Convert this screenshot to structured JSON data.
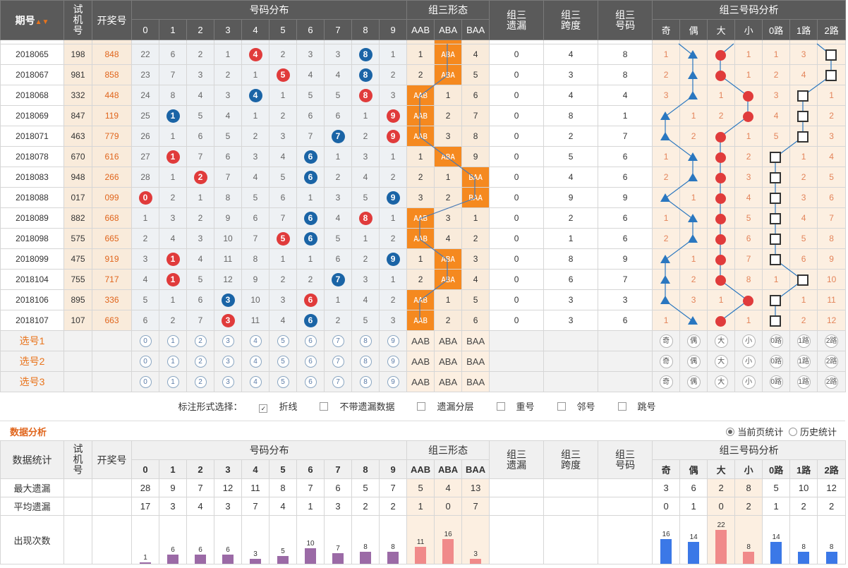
{
  "header": {
    "issue": "期号",
    "sjh": "试机号",
    "kjh": "开奖号",
    "dist": "号码分布",
    "form": "组三形态",
    "miss": "组三遗漏",
    "span": "组三跨度",
    "code": "组三号码",
    "analysis": "组三号码分析"
  },
  "digits": [
    "0",
    "1",
    "2",
    "3",
    "4",
    "5",
    "6",
    "7",
    "8",
    "9"
  ],
  "form_labels": [
    "AAB",
    "ABA",
    "BAA"
  ],
  "ana_labels": [
    "奇",
    "偶",
    "大",
    "小",
    "0路",
    "1路",
    "2路"
  ],
  "rows": [
    {
      "issue": "2018065",
      "sj": "198",
      "kj": "848",
      "d": [
        "22",
        "6",
        "2",
        "1",
        "4",
        "2",
        "3",
        "3",
        "8",
        "1"
      ],
      "hit": [
        4,
        8
      ],
      "hc": "blue",
      "hcs": [
        "red",
        "blue"
      ],
      "f": [
        "1",
        "ABA",
        "4"
      ],
      "fh": 1,
      "m": "0",
      "s": "4",
      "c": "8",
      "a": [
        "1",
        "",
        "",
        "1",
        "1",
        "3",
        ""
      ]
    },
    {
      "issue": "2018067",
      "sj": "981",
      "kj": "858",
      "d": [
        "23",
        "7",
        "3",
        "2",
        "1",
        "5",
        "4",
        "4",
        "8",
        "2"
      ],
      "hit": [
        5,
        8
      ],
      "hcs": [
        "red",
        "blue"
      ],
      "f": [
        "2",
        "ABA",
        "5"
      ],
      "fh": 1,
      "m": "0",
      "s": "3",
      "c": "8",
      "a": [
        "2",
        "",
        "",
        "1",
        "2",
        "4",
        ""
      ]
    },
    {
      "issue": "2018068",
      "sj": "332",
      "kj": "448",
      "d": [
        "24",
        "8",
        "4",
        "3",
        "4",
        "1",
        "5",
        "5",
        "8",
        "3"
      ],
      "hit": [
        4,
        8
      ],
      "hcs": [
        "blue",
        "red"
      ],
      "f": [
        "AAB",
        "1",
        "6"
      ],
      "fh": 0,
      "m": "0",
      "s": "4",
      "c": "4",
      "a": [
        "3",
        "",
        "1",
        "",
        "3",
        "",
        "1"
      ]
    },
    {
      "issue": "2018069",
      "sj": "847",
      "kj": "119",
      "d": [
        "25",
        "1",
        "5",
        "4",
        "1",
        "2",
        "6",
        "6",
        "1",
        "9"
      ],
      "hit": [
        1,
        9
      ],
      "hcs": [
        "blue",
        "red"
      ],
      "f": [
        "AAB",
        "2",
        "7"
      ],
      "fh": 0,
      "m": "0",
      "s": "8",
      "c": "1",
      "a": [
        "",
        "1",
        "2",
        "",
        "4",
        "",
        "2"
      ]
    },
    {
      "issue": "2018071",
      "sj": "463",
      "kj": "779",
      "d": [
        "26",
        "1",
        "6",
        "5",
        "2",
        "3",
        "7",
        "7",
        "2",
        "9"
      ],
      "hit": [
        7,
        9
      ],
      "hcs": [
        "blue",
        "red"
      ],
      "f": [
        "AAB",
        "3",
        "8"
      ],
      "fh": 0,
      "m": "0",
      "s": "2",
      "c": "7",
      "a": [
        "",
        "2",
        "",
        "1",
        "5",
        "",
        "3"
      ]
    },
    {
      "issue": "2018078",
      "sj": "670",
      "kj": "616",
      "d": [
        "27",
        "1",
        "7",
        "6",
        "3",
        "4",
        "6",
        "1",
        "3",
        "1"
      ],
      "hit": [
        1,
        6
      ],
      "hcs": [
        "red",
        "blue"
      ],
      "f": [
        "1",
        "ABA",
        "9"
      ],
      "fh": 1,
      "m": "0",
      "s": "5",
      "c": "6",
      "a": [
        "1",
        "",
        "",
        "2",
        "",
        "1",
        "4"
      ]
    },
    {
      "issue": "2018083",
      "sj": "948",
      "kj": "266",
      "d": [
        "28",
        "1",
        "2",
        "7",
        "4",
        "5",
        "6",
        "2",
        "4",
        "2"
      ],
      "hit": [
        2,
        6
      ],
      "hcs": [
        "red",
        "blue"
      ],
      "f": [
        "2",
        "1",
        "BAA"
      ],
      "fh": 2,
      "m": "0",
      "s": "4",
      "c": "6",
      "a": [
        "2",
        "",
        "",
        "3",
        "",
        "2",
        "5"
      ]
    },
    {
      "issue": "2018088",
      "sj": "017",
      "kj": "099",
      "d": [
        "0",
        "2",
        "1",
        "8",
        "5",
        "6",
        "1",
        "3",
        "5",
        "9"
      ],
      "hit": [
        0,
        9
      ],
      "hcs": [
        "red",
        "blue"
      ],
      "f": [
        "3",
        "2",
        "BAA"
      ],
      "fh": 2,
      "m": "0",
      "s": "9",
      "c": "9",
      "a": [
        "",
        "1",
        "",
        "4",
        "",
        "3",
        "6"
      ]
    },
    {
      "issue": "2018089",
      "sj": "882",
      "kj": "668",
      "d": [
        "1",
        "3",
        "2",
        "9",
        "6",
        "7",
        "6",
        "4",
        "8",
        "1"
      ],
      "hit": [
        6,
        8
      ],
      "hcs": [
        "blue",
        "red"
      ],
      "f": [
        "AAB",
        "3",
        "1"
      ],
      "fh": 0,
      "m": "0",
      "s": "2",
      "c": "6",
      "a": [
        "1",
        "",
        "",
        "5",
        "",
        "4",
        "7"
      ]
    },
    {
      "issue": "2018098",
      "sj": "575",
      "kj": "665",
      "d": [
        "2",
        "4",
        "3",
        "10",
        "7",
        "5",
        "6",
        "5",
        "1",
        "2"
      ],
      "hit": [
        5,
        6
      ],
      "hcs": [
        "red",
        "blue"
      ],
      "f": [
        "AAB",
        "4",
        "2"
      ],
      "fh": 0,
      "m": "0",
      "s": "1",
      "c": "6",
      "a": [
        "2",
        "",
        "",
        "6",
        "",
        "5",
        "8"
      ]
    },
    {
      "issue": "2018099",
      "sj": "475",
      "kj": "919",
      "d": [
        "3",
        "1",
        "4",
        "11",
        "8",
        "1",
        "1",
        "6",
        "2",
        "9"
      ],
      "hit": [
        1,
        9
      ],
      "hcs": [
        "red",
        "blue"
      ],
      "f": [
        "1",
        "ABA",
        "3"
      ],
      "fh": 1,
      "m": "0",
      "s": "8",
      "c": "9",
      "a": [
        "",
        "1",
        "",
        "7",
        "",
        "6",
        "9"
      ]
    },
    {
      "issue": "2018104",
      "sj": "755",
      "kj": "717",
      "d": [
        "4",
        "1",
        "5",
        "12",
        "9",
        "2",
        "2",
        "7",
        "3",
        "1"
      ],
      "hit": [
        1,
        7
      ],
      "hcs": [
        "red",
        "blue"
      ],
      "f": [
        "2",
        "ABA",
        "4"
      ],
      "fh": 1,
      "m": "0",
      "s": "6",
      "c": "7",
      "a": [
        "",
        "2",
        "",
        "8",
        "1",
        "",
        "10"
      ]
    },
    {
      "issue": "2018106",
      "sj": "895",
      "kj": "336",
      "d": [
        "5",
        "1",
        "6",
        "3",
        "10",
        "3",
        "6",
        "1",
        "4",
        "2"
      ],
      "hit": [
        3,
        6
      ],
      "hcs": [
        "blue",
        "red"
      ],
      "f": [
        "AAB",
        "1",
        "5"
      ],
      "fh": 0,
      "m": "0",
      "s": "3",
      "c": "3",
      "a": [
        "",
        "3",
        "1",
        "",
        "",
        "1",
        "11"
      ]
    },
    {
      "issue": "2018107",
      "sj": "107",
      "kj": "663",
      "d": [
        "6",
        "2",
        "7",
        "3",
        "11",
        "4",
        "6",
        "2",
        "5",
        "3"
      ],
      "hit": [
        3,
        6
      ],
      "hcs": [
        "red",
        "blue"
      ],
      "f": [
        "AAB",
        "2",
        "6"
      ],
      "fh": 0,
      "m": "0",
      "s": "3",
      "c": "6",
      "a": [
        "1",
        "",
        "",
        "1",
        "",
        "2",
        "12"
      ]
    }
  ],
  "trend": {
    "tri_col": [
      1,
      1,
      1,
      0,
      0,
      1,
      1,
      0,
      1,
      1,
      0,
      0,
      0,
      1
    ],
    "dot_col": [
      2,
      2,
      3,
      3,
      2,
      2,
      2,
      2,
      2,
      2,
      2,
      2,
      3,
      2
    ],
    "sq_col": [
      6,
      6,
      5,
      5,
      5,
      4,
      4,
      4,
      4,
      4,
      4,
      5,
      4,
      4
    ]
  },
  "select_rows": [
    "选号1",
    "选号2",
    "选号3"
  ],
  "options": {
    "label": "标注形式选择：",
    "items": [
      {
        "label": "折线",
        "checked": true
      },
      {
        "label": "不带遗漏数据",
        "checked": false
      },
      {
        "label": "遗漏分层",
        "checked": false
      },
      {
        "label": "重号",
        "checked": false
      },
      {
        "label": "邻号",
        "checked": false
      },
      {
        "label": "跳号",
        "checked": false
      }
    ]
  },
  "analysis": {
    "title": "数据分析",
    "radio_current": "当前页统计",
    "radio_history": "历史统计"
  },
  "stats": {
    "title": "数据统计",
    "max_label": "最大遗漏",
    "avg_label": "平均遗漏",
    "count_label": "出现次数",
    "max": [
      "28",
      "9",
      "7",
      "12",
      "11",
      "8",
      "7",
      "6",
      "5",
      "7"
    ],
    "avg": [
      "17",
      "3",
      "4",
      "3",
      "7",
      "4",
      "1",
      "3",
      "2",
      "2"
    ],
    "count": [
      1,
      6,
      6,
      6,
      3,
      5,
      10,
      7,
      8,
      8
    ],
    "form_max": [
      "5",
      "4",
      "13"
    ],
    "form_avg": [
      "1",
      "0",
      "7"
    ],
    "form_count": [
      11,
      16,
      3
    ],
    "ana_max": [
      "3",
      "6",
      "2",
      "8",
      "5",
      "10",
      "12"
    ],
    "ana_avg": [
      "0",
      "1",
      "0",
      "2",
      "1",
      "2",
      "2"
    ],
    "ana_count": [
      16,
      14,
      22,
      8,
      14,
      8,
      8
    ],
    "colors": {
      "digit": "#9b6aa6",
      "form": "#f08a8a",
      "ana_blue": "#3b78e7",
      "ana_red": "#f08a8a"
    }
  }
}
